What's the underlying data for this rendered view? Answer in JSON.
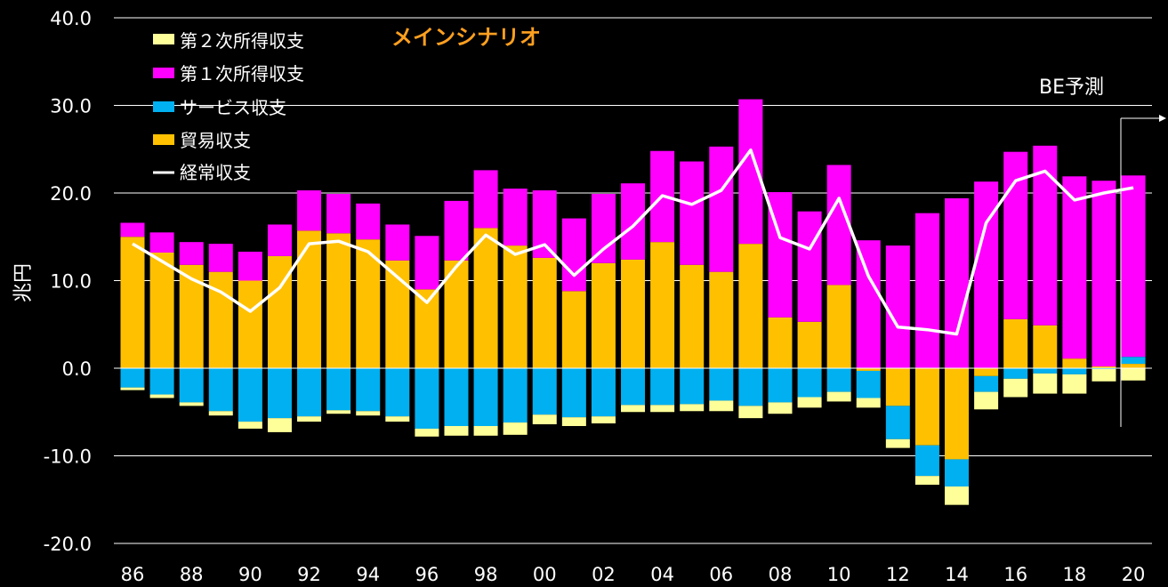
{
  "chart_data": {
    "type": "bar",
    "title": "メインシナリオ",
    "ylabel": "兆円",
    "ylim": [
      -20,
      40
    ],
    "yticks": [
      "40.0",
      "30.0",
      "20.0",
      "10.0",
      "0.0",
      "-10.0",
      "-20.0"
    ],
    "annotation": "BE予測",
    "x_tick_labels": [
      "86",
      "88",
      "90",
      "92",
      "94",
      "96",
      "98",
      "00",
      "02",
      "04",
      "06",
      "08",
      "10",
      "12",
      "14",
      "16",
      "18",
      "20"
    ],
    "x": [
      1986,
      1987,
      1988,
      1989,
      1990,
      1991,
      1992,
      1993,
      1994,
      1995,
      1996,
      1997,
      1998,
      1999,
      2000,
      2001,
      2002,
      2003,
      2004,
      2005,
      2006,
      2007,
      2008,
      2009,
      2010,
      2011,
      2012,
      2013,
      2014,
      2015,
      2016,
      2017,
      2018,
      2019,
      2020
    ],
    "legend": [
      "第２次所得収支",
      "第１次所得収支",
      "サービス収支",
      "貿易収支",
      "経常収支"
    ],
    "colors": {
      "secondary_income": "#ffff99",
      "primary_income": "#ff00ff",
      "services": "#00b0f0",
      "trade": "#ffc000",
      "current_account": "#ffffff"
    },
    "series": [
      {
        "name": "貿易収支",
        "values": [
          15.0,
          13.2,
          11.8,
          11.0,
          10.0,
          12.8,
          15.7,
          15.4,
          14.7,
          12.3,
          9.0,
          12.3,
          16.0,
          14.0,
          12.6,
          8.8,
          12.0,
          12.4,
          14.4,
          11.8,
          11.0,
          14.2,
          5.8,
          5.3,
          9.5,
          -0.3,
          -4.3,
          -8.8,
          -10.4,
          -0.9,
          5.6,
          4.9,
          1.1,
          0.2,
          0.5
        ]
      },
      {
        "name": "サービス収支",
        "values": [
          -2.2,
          -3.0,
          -3.9,
          -4.9,
          -6.1,
          -5.7,
          -5.5,
          -4.8,
          -4.9,
          -5.5,
          -6.9,
          -6.6,
          -6.6,
          -6.2,
          -5.3,
          -5.6,
          -5.5,
          -4.2,
          -4.2,
          -4.1,
          -3.7,
          -4.3,
          -3.9,
          -3.3,
          -2.7,
          -3.1,
          -3.8,
          -3.5,
          -3.1,
          -1.8,
          -1.2,
          -0.6,
          -0.7,
          -0.1,
          0.8
        ]
      },
      {
        "name": "第１次所得収支",
        "values": [
          1.6,
          2.3,
          2.6,
          3.2,
          3.3,
          3.6,
          4.6,
          4.5,
          4.1,
          4.1,
          6.1,
          6.8,
          6.6,
          6.5,
          7.7,
          8.3,
          7.9,
          8.7,
          10.4,
          11.8,
          14.3,
          16.5,
          14.3,
          12.6,
          13.7,
          14.6,
          14.0,
          17.7,
          19.4,
          21.3,
          19.1,
          20.5,
          20.8,
          21.2,
          20.7
        ]
      },
      {
        "name": "第２次所得収支",
        "values": [
          -0.3,
          -0.4,
          -0.4,
          -0.5,
          -0.8,
          -1.6,
          -0.6,
          -0.4,
          -0.5,
          -0.6,
          -0.9,
          -1.1,
          -1.1,
          -1.4,
          -1.1,
          -1.0,
          -0.8,
          -0.8,
          -0.8,
          -0.8,
          -1.2,
          -1.4,
          -1.3,
          -1.2,
          -1.1,
          -1.1,
          -1.0,
          -1.0,
          -2.1,
          -2.0,
          -2.1,
          -2.3,
          -2.2,
          -1.4,
          -1.4
        ]
      },
      {
        "name": "経常収支",
        "values": [
          14.2,
          12.2,
          10.2,
          8.7,
          6.5,
          9.2,
          14.2,
          14.5,
          13.3,
          10.4,
          7.5,
          11.6,
          15.2,
          13.0,
          14.1,
          10.6,
          13.6,
          16.2,
          19.7,
          18.7,
          20.3,
          24.9,
          14.9,
          13.6,
          19.4,
          10.5,
          4.7,
          4.4,
          3.9,
          16.6,
          21.4,
          22.5,
          19.2,
          20.0,
          20.6
        ]
      }
    ]
  }
}
